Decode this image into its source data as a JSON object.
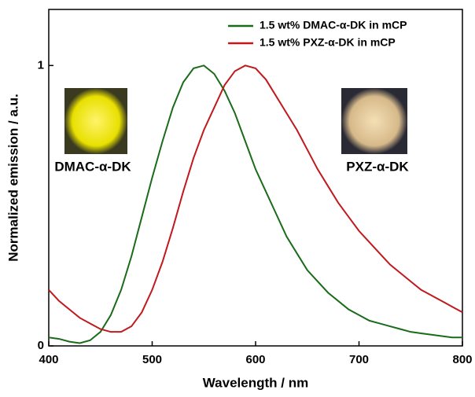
{
  "chart_data": {
    "type": "line",
    "xlabel": "Wavelength / nm",
    "ylabel": "Normalized emission / a.u.",
    "x": [
      400,
      410,
      420,
      430,
      440,
      450,
      460,
      470,
      480,
      490,
      500,
      510,
      520,
      530,
      540,
      550,
      560,
      570,
      580,
      590,
      600,
      610,
      620,
      630,
      640,
      650,
      660,
      670,
      680,
      690,
      700,
      710,
      720,
      730,
      740,
      750,
      760,
      770,
      780,
      790,
      800
    ],
    "series": [
      {
        "name": "1.5 wt% DMAC-α-DK in mCP",
        "color": "#1a6b1a",
        "values": [
          0.03,
          0.025,
          0.015,
          0.01,
          0.02,
          0.05,
          0.11,
          0.2,
          0.32,
          0.46,
          0.6,
          0.73,
          0.85,
          0.94,
          0.99,
          1.0,
          0.97,
          0.91,
          0.83,
          0.73,
          0.63,
          0.55,
          0.47,
          0.39,
          0.33,
          0.27,
          0.23,
          0.19,
          0.16,
          0.13,
          0.11,
          0.09,
          0.08,
          0.07,
          0.06,
          0.05,
          0.045,
          0.04,
          0.035,
          0.03,
          0.03
        ]
      },
      {
        "name": "1.5 wt% PXZ-α-DK in mCP",
        "color": "#c0191e",
        "values": [
          0.2,
          0.16,
          0.13,
          0.1,
          0.08,
          0.06,
          0.05,
          0.05,
          0.07,
          0.12,
          0.2,
          0.3,
          0.42,
          0.55,
          0.67,
          0.77,
          0.85,
          0.93,
          0.98,
          1.0,
          0.99,
          0.95,
          0.89,
          0.83,
          0.77,
          0.7,
          0.63,
          0.57,
          0.51,
          0.46,
          0.41,
          0.37,
          0.33,
          0.29,
          0.26,
          0.23,
          0.2,
          0.18,
          0.16,
          0.14,
          0.12
        ]
      }
    ],
    "annotations": [
      "DMAC-α-DK",
      "PXZ-α-DK"
    ],
    "xlim": [
      400,
      800
    ],
    "xticks": [
      400,
      500,
      600,
      700,
      800
    ],
    "ylim": [
      0,
      1.2
    ],
    "yticks": [
      0,
      1
    ],
    "legend": "upper right"
  }
}
